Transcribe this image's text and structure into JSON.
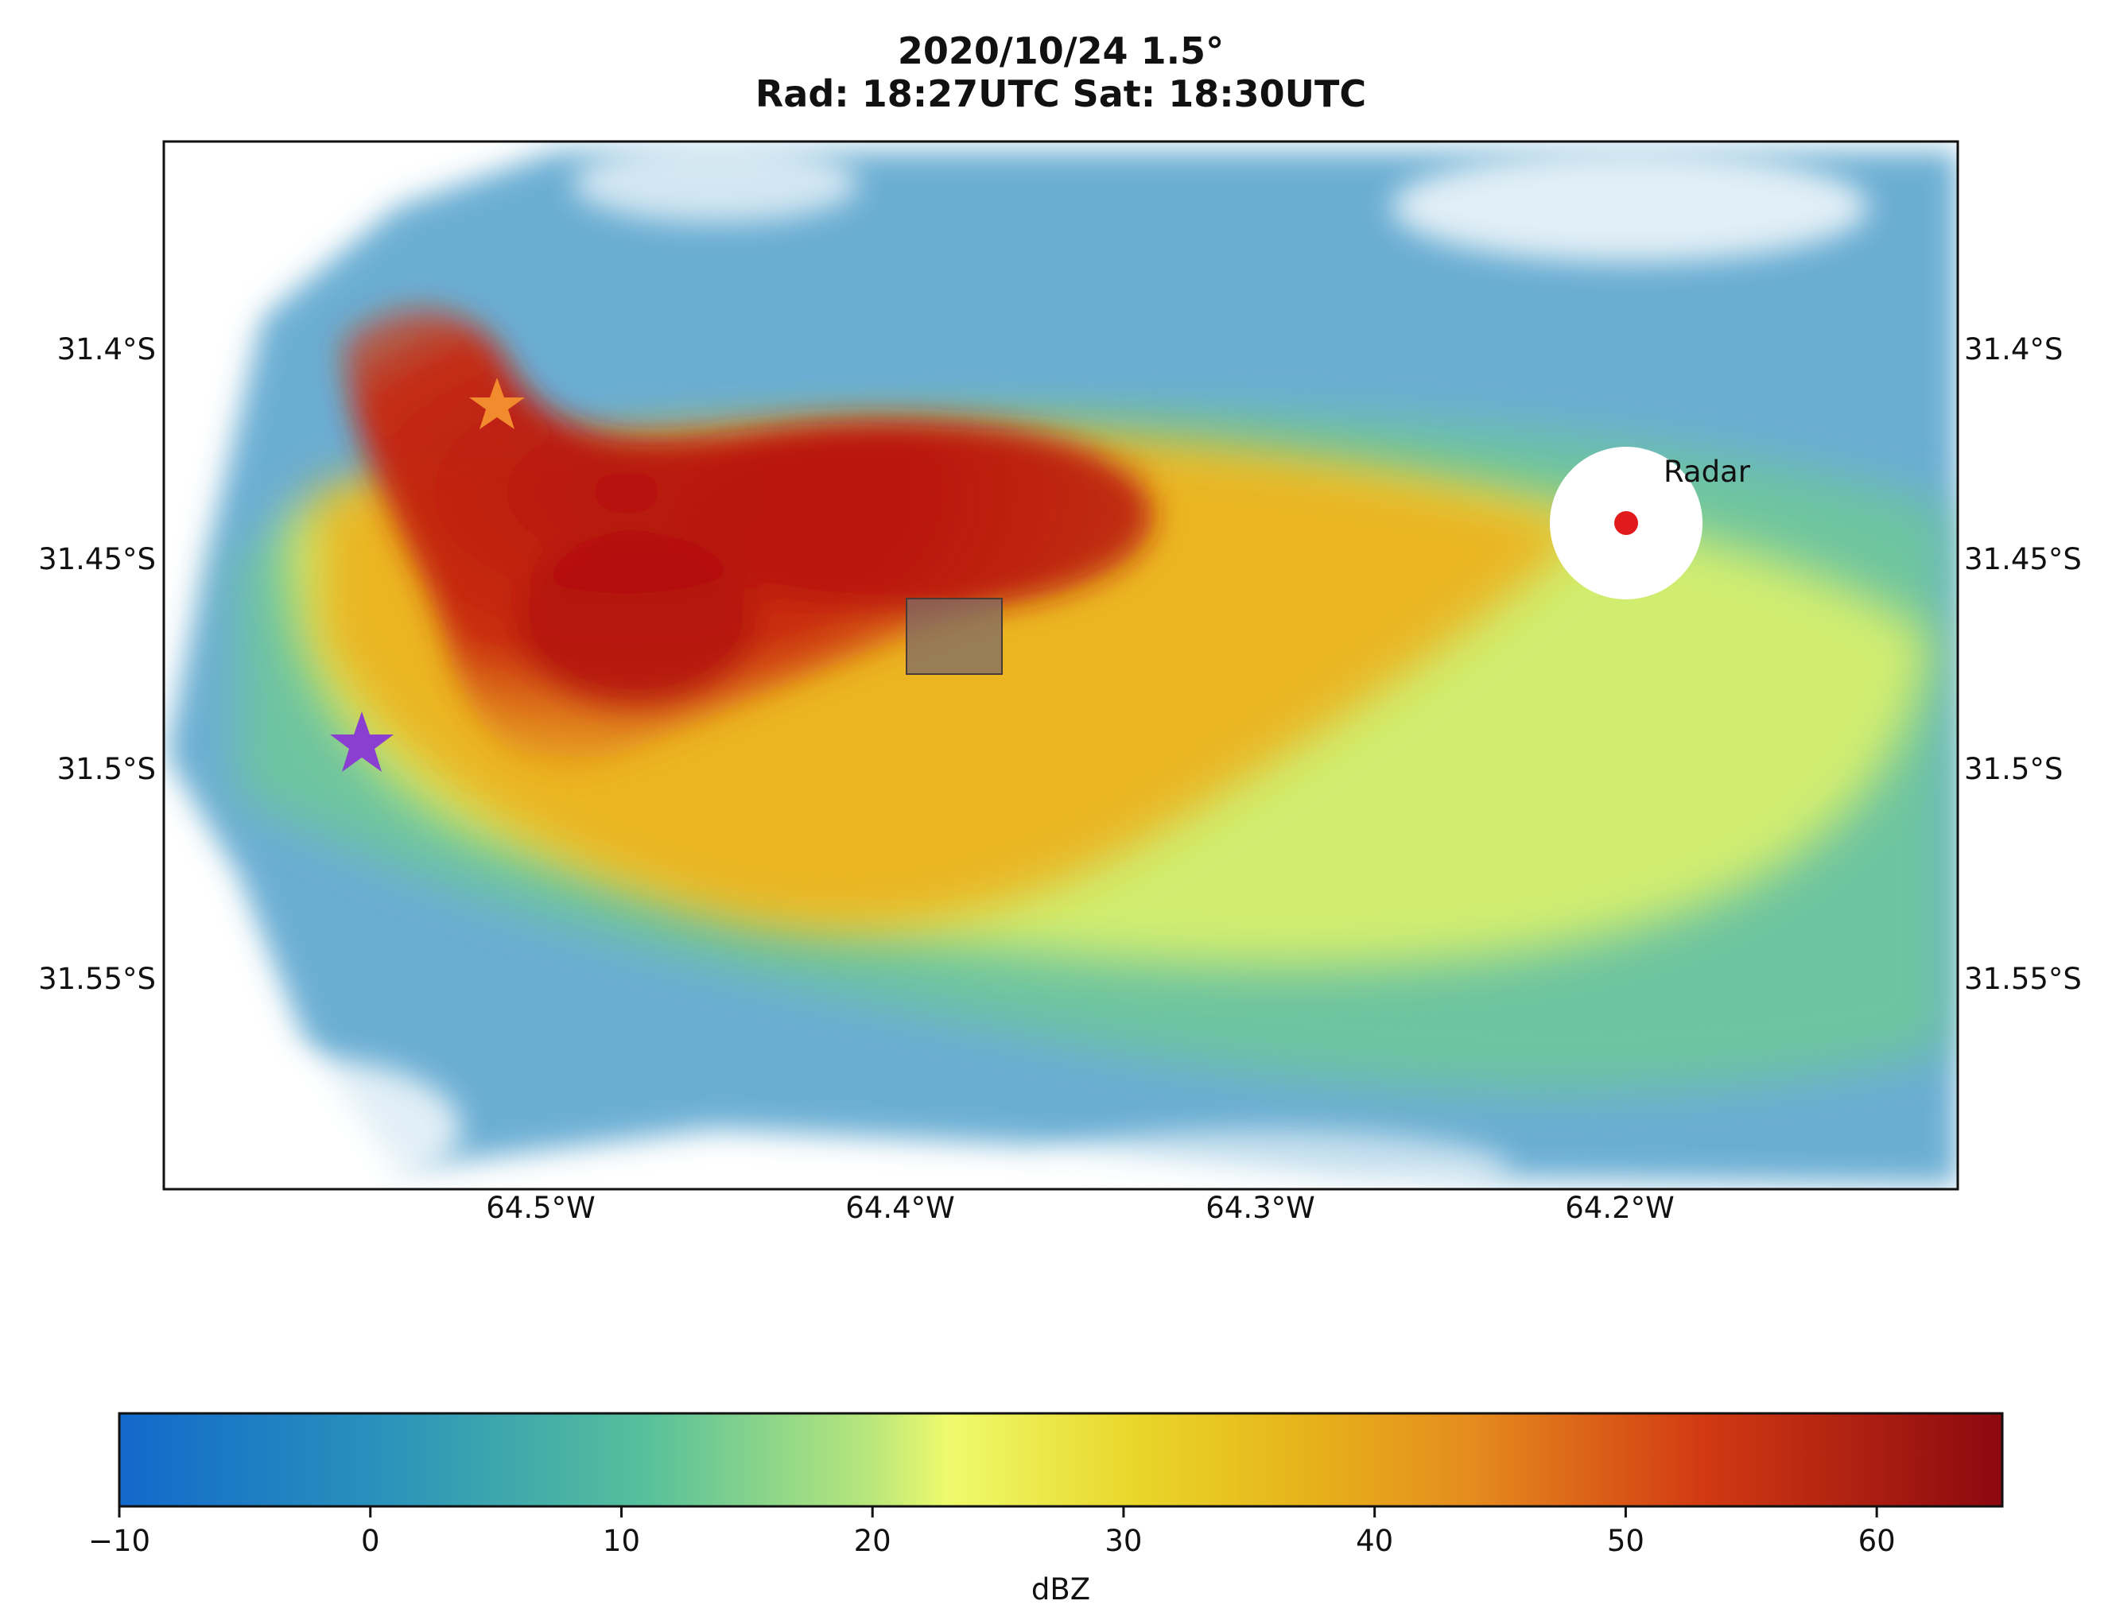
{
  "figure": {
    "title_line1": "2020/10/24  1.5°",
    "title_line2": "Rad: 18:27UTC Sat: 18:30UTC"
  },
  "map": {
    "lon_ticks": [
      "64.5°W",
      "64.4°W",
      "64.3°W",
      "64.2°W"
    ],
    "lat_ticks": [
      "31.4°S",
      "31.45°S",
      "31.5°S",
      "31.55°S"
    ],
    "radar_label": "Radar",
    "markers": {
      "radar_dot_color": "#e11b1b",
      "orange_star_color": "#f28a2e",
      "purple_star_color": "#8a3fd1",
      "box_color": "#7d6b66"
    }
  },
  "colorbar": {
    "label": "dBZ",
    "ticks": [
      "−10",
      "0",
      "10",
      "20",
      "30",
      "40",
      "50",
      "60"
    ],
    "range": [
      -10,
      65
    ],
    "colors": [
      "#1569c9",
      "#2e9bb8",
      "#5cc29a",
      "#e8f56a",
      "#e6c21a",
      "#e6901c",
      "#cf2a12",
      "#8f0a10"
    ]
  }
}
